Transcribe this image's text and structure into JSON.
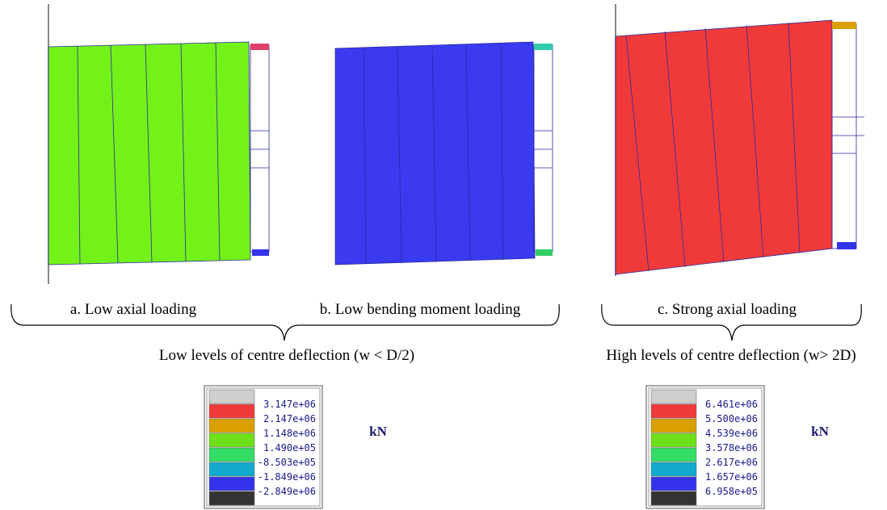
{
  "panels": [
    {
      "caption": "a. Low axial loading"
    },
    {
      "caption": "b. Low bending moment loading"
    },
    {
      "caption": "c. Strong axial loading"
    }
  ],
  "groups": [
    {
      "label": "Low levels of centre deflection (w < D/2)"
    },
    {
      "label": "High levels of centre deflection (w> 2D)"
    }
  ],
  "legends": [
    {
      "values": [
        "3.147e+06",
        "2.147e+06",
        "1.148e+06",
        "1.490e+05",
        "-8.503e+05",
        "-1.849e+06",
        "-2.849e+06"
      ],
      "unit": "kN"
    },
    {
      "values": [
        "6.461e+06",
        "5.500e+06",
        "4.539e+06",
        "3.578e+06",
        "2.617e+06",
        "1.657e+06",
        "6.958e+05"
      ],
      "unit": "kN"
    }
  ]
}
